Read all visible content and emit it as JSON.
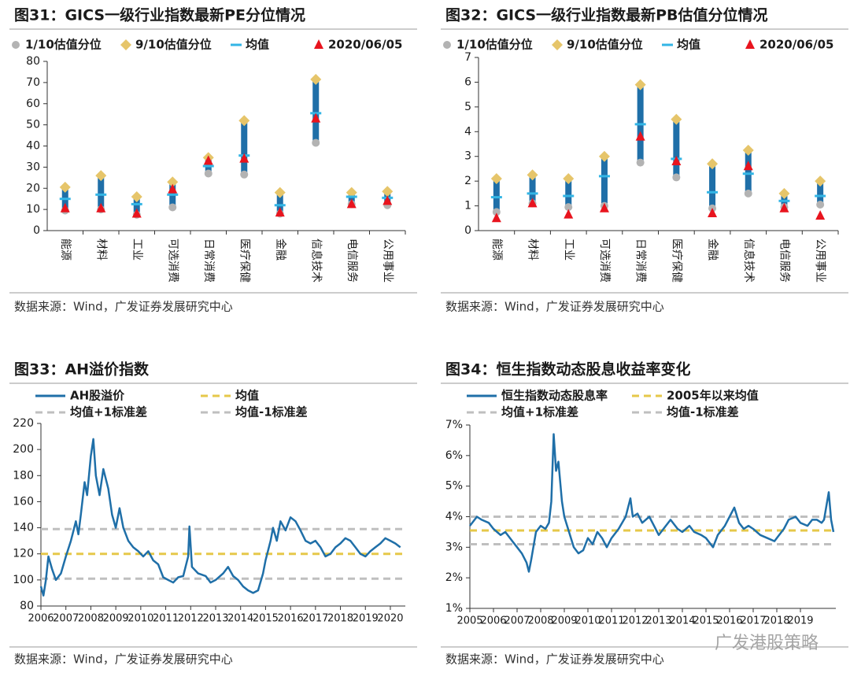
{
  "chart_data": [
    {
      "type": "range",
      "title": "图31：GICS一级行业指数最新PE分位情况",
      "categories": [
        "能源",
        "材料",
        "工业",
        "可选消费",
        "日常消费",
        "医疗保健",
        "金融",
        "信息技术",
        "电信服务",
        "公用事业"
      ],
      "series": [
        {
          "name": "1/10估值分位",
          "color": "#b3b3b3",
          "marker": "circle",
          "values": [
            9.5,
            10,
            7.5,
            11,
            27,
            26.5,
            8,
            41.5,
            12.5,
            12
          ]
        },
        {
          "name": "9/10估值分位",
          "color": "#e6c56a",
          "marker": "diamond",
          "values": [
            20.5,
            26,
            16,
            23,
            34.5,
            52,
            18,
            71.5,
            18,
            18.5
          ]
        },
        {
          "name": "均值",
          "color": "#33b5e5",
          "marker": "dash",
          "values": [
            15,
            17,
            12.5,
            17,
            30.5,
            35.5,
            12,
            55.5,
            16,
            15.5
          ]
        },
        {
          "name": "2020/06/05",
          "color": "#e8141e",
          "marker": "triangle",
          "values": [
            10.5,
            10.5,
            8,
            19.5,
            33,
            34,
            8.5,
            53,
            12.5,
            14
          ]
        }
      ],
      "bar_color": "#1f6fa8",
      "ylim": [
        0,
        80
      ],
      "yticks": [
        0,
        10,
        20,
        30,
        40,
        50,
        60,
        70,
        80
      ],
      "source": "数据来源：Wind，广发证券发展研究中心"
    },
    {
      "type": "range",
      "title": "图32：GICS一级行业指数最新PB估值分位情况",
      "categories": [
        "能源",
        "材料",
        "工业",
        "可选消费",
        "日常消费",
        "医疗保健",
        "金融",
        "信息技术",
        "电信服务",
        "公用事业"
      ],
      "series": [
        {
          "name": "1/10估值分位",
          "color": "#b3b3b3",
          "marker": "circle",
          "values": [
            0.75,
            1.1,
            0.95,
            1.0,
            2.75,
            2.15,
            0.9,
            1.5,
            0.95,
            1.05
          ]
        },
        {
          "name": "9/10估值分位",
          "color": "#e6c56a",
          "marker": "diamond",
          "values": [
            2.1,
            2.25,
            2.1,
            3.0,
            5.9,
            4.5,
            2.7,
            3.25,
            1.5,
            2.0
          ]
        },
        {
          "name": "均值",
          "color": "#33b5e5",
          "marker": "dash",
          "values": [
            1.35,
            1.5,
            1.4,
            2.2,
            4.3,
            2.9,
            1.55,
            2.3,
            1.2,
            1.4
          ]
        },
        {
          "name": "2020/06/05",
          "color": "#e8141e",
          "marker": "triangle",
          "values": [
            0.5,
            1.1,
            0.65,
            0.9,
            3.8,
            2.8,
            0.7,
            2.6,
            0.9,
            0.6
          ]
        }
      ],
      "bar_color": "#1f6fa8",
      "ylim": [
        0,
        7
      ],
      "yticks": [
        0,
        1,
        2,
        3,
        4,
        5,
        6,
        7
      ],
      "source": "数据来源：Wind，广发证券发展研究中心"
    },
    {
      "type": "line",
      "title": "图33：AH溢价指数",
      "x": [
        2006.0,
        2006.1,
        2006.2,
        2006.3,
        2006.45,
        2006.6,
        2006.8,
        2007.0,
        2007.2,
        2007.4,
        2007.5,
        2007.6,
        2007.75,
        2007.85,
        2008.0,
        2008.1,
        2008.2,
        2008.35,
        2008.5,
        2008.7,
        2008.85,
        2009.0,
        2009.15,
        2009.3,
        2009.5,
        2009.7,
        2009.9,
        2010.1,
        2010.3,
        2010.5,
        2010.7,
        2010.9,
        2011.1,
        2011.3,
        2011.5,
        2011.7,
        2011.9,
        2011.95,
        2012.05,
        2012.3,
        2012.6,
        2012.8,
        2013.0,
        2013.3,
        2013.5,
        2013.7,
        2013.9,
        2014.1,
        2014.3,
        2014.5,
        2014.7,
        2014.9,
        2015.0,
        2015.2,
        2015.3,
        2015.45,
        2015.6,
        2015.8,
        2016.0,
        2016.2,
        2016.4,
        2016.6,
        2016.8,
        2017.0,
        2017.2,
        2017.4,
        2017.6,
        2017.8,
        2018.0,
        2018.2,
        2018.4,
        2018.6,
        2018.8,
        2019.0,
        2019.2,
        2019.4,
        2019.6,
        2019.8,
        2020.0,
        2020.2,
        2020.4
      ],
      "series": [
        {
          "name": "AH股溢价",
          "color": "#1f6fa8",
          "values": [
            95,
            88,
            100,
            118,
            108,
            100,
            105,
            118,
            130,
            145,
            135,
            150,
            175,
            165,
            195,
            208,
            180,
            165,
            185,
            170,
            150,
            140,
            155,
            140,
            130,
            125,
            122,
            118,
            122,
            115,
            112,
            102,
            100,
            98,
            102,
            103,
            118,
            141,
            110,
            105,
            103,
            98,
            100,
            105,
            110,
            103,
            100,
            95,
            92,
            90,
            92,
            105,
            115,
            130,
            140,
            130,
            145,
            138,
            148,
            145,
            138,
            130,
            128,
            130,
            125,
            118,
            120,
            125,
            128,
            132,
            130,
            125,
            120,
            118,
            122,
            125,
            128,
            132,
            130,
            128,
            125
          ]
        }
      ],
      "hlines": [
        {
          "name": "均值",
          "value": 120,
          "color": "#e6c84a"
        },
        {
          "name": "均值+1标准差",
          "value": 139,
          "color": "#bfbfbf"
        },
        {
          "name": "均值-1标准差",
          "value": 101,
          "color": "#bfbfbf"
        }
      ],
      "xlim": [
        2006,
        2020.6
      ],
      "xticks": [
        2006,
        2007,
        2008,
        2009,
        2010,
        2011,
        2012,
        2013,
        2014,
        2015,
        2016,
        2017,
        2018,
        2019,
        2020
      ],
      "ylim": [
        80,
        220
      ],
      "yticks": [
        80,
        100,
        120,
        140,
        160,
        180,
        200,
        220
      ],
      "source": "数据来源：Wind，广发证券发展研究中心"
    },
    {
      "type": "line",
      "title": "图34：恒生指数动态股息收益率变化",
      "x": [
        2005.0,
        2005.3,
        2005.5,
        2005.8,
        2006.0,
        2006.3,
        2006.5,
        2006.8,
        2007.0,
        2007.2,
        2007.4,
        2007.5,
        2007.6,
        2007.8,
        2008.0,
        2008.2,
        2008.35,
        2008.45,
        2008.55,
        2008.65,
        2008.75,
        2008.9,
        2009.0,
        2009.2,
        2009.4,
        2009.6,
        2009.8,
        2010.0,
        2010.2,
        2010.4,
        2010.6,
        2010.8,
        2011.0,
        2011.3,
        2011.6,
        2011.8,
        2011.9,
        2012.1,
        2012.3,
        2012.6,
        2012.8,
        2013.0,
        2013.3,
        2013.5,
        2013.8,
        2014.0,
        2014.3,
        2014.5,
        2014.8,
        2015.0,
        2015.3,
        2015.5,
        2015.8,
        2016.0,
        2016.2,
        2016.4,
        2016.6,
        2016.8,
        2017.0,
        2017.3,
        2017.6,
        2017.9,
        2018.1,
        2018.3,
        2018.5,
        2018.8,
        2019.0,
        2019.3,
        2019.5,
        2019.7,
        2019.9,
        2020.0,
        2020.2,
        2020.3,
        2020.4
      ],
      "series": [
        {
          "name": "恒生指数动态股息率",
          "color": "#1f6fa8",
          "values": [
            3.7,
            4.0,
            3.9,
            3.8,
            3.6,
            3.4,
            3.5,
            3.2,
            3.0,
            2.8,
            2.5,
            2.2,
            2.6,
            3.5,
            3.7,
            3.6,
            3.8,
            4.5,
            6.7,
            5.5,
            5.8,
            4.5,
            4.0,
            3.5,
            3.0,
            2.8,
            2.9,
            3.3,
            3.1,
            3.5,
            3.3,
            3.0,
            3.3,
            3.6,
            4.0,
            4.6,
            4.0,
            4.1,
            3.8,
            4.0,
            3.7,
            3.4,
            3.7,
            3.9,
            3.6,
            3.5,
            3.7,
            3.5,
            3.4,
            3.3,
            3.0,
            3.4,
            3.7,
            4.0,
            4.3,
            3.8,
            3.6,
            3.7,
            3.6,
            3.4,
            3.3,
            3.2,
            3.4,
            3.6,
            3.9,
            4.0,
            3.8,
            3.7,
            3.9,
            3.9,
            3.8,
            3.9,
            4.8,
            3.9,
            3.5
          ]
        }
      ],
      "hlines": [
        {
          "name": "2005年以来均值",
          "value": 3.55,
          "color": "#e6c84a"
        },
        {
          "name": "均值+1标准差",
          "value": 4.0,
          "color": "#bfbfbf"
        },
        {
          "name": "均值-1标准差",
          "value": 3.1,
          "color": "#bfbfbf"
        }
      ],
      "xlim": [
        2005,
        2020.5
      ],
      "xticks": [
        2005,
        2006,
        2007,
        2008,
        2009,
        2010,
        2011,
        2012,
        2013,
        2014,
        2015,
        2016,
        2017,
        2018,
        2019
      ],
      "ylim": [
        1,
        7
      ],
      "yticks": [
        {
          "value": 1,
          "label": "1%"
        },
        {
          "value": 2,
          "label": "2%"
        },
        {
          "value": 3,
          "label": "3%"
        },
        {
          "value": 4,
          "label": "4%"
        },
        {
          "value": 5,
          "label": "5%"
        },
        {
          "value": 6,
          "label": "6%"
        },
        {
          "value": 7,
          "label": "7%"
        }
      ],
      "source": "数据来源：Wind，广发证券发展研究中心"
    }
  ],
  "watermark": "广发港股策略"
}
